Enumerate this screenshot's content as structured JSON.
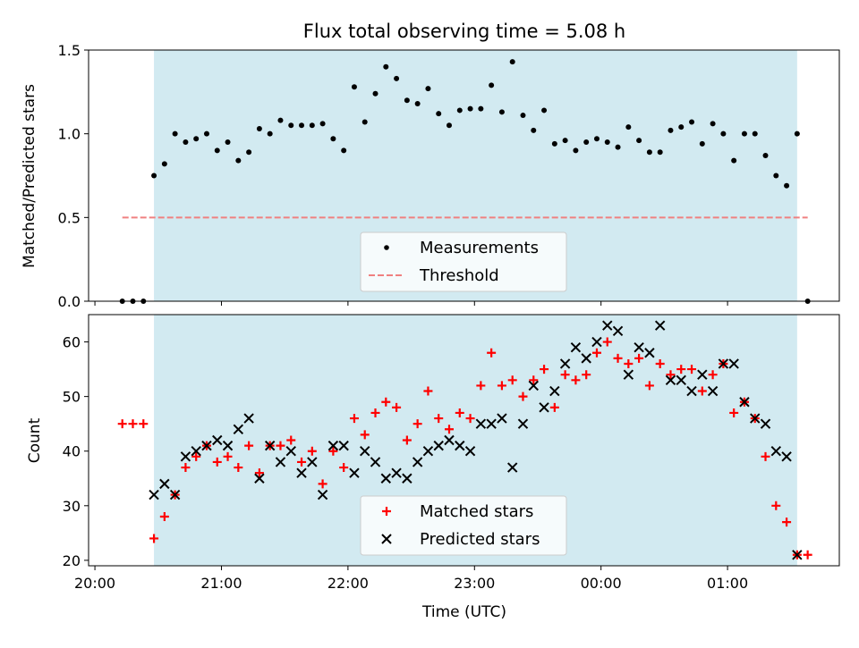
{
  "chart_data": [
    {
      "type": "scatter",
      "title": "Flux total observing time = 5.08 h",
      "xlabel": "",
      "ylabel": "Matched/Predicted stars",
      "ylim": [
        0,
        1.5
      ],
      "yticks": [
        "0.0",
        "0.5",
        "1.0",
        "1.5"
      ],
      "shaded_span": {
        "start": "20:28",
        "end": "01:33",
        "color": "#add8e6"
      },
      "threshold": {
        "name": "Threshold",
        "value": 0.5,
        "x_start": "20:13",
        "x_end": "01:38",
        "color": "#f08080",
        "style": "dashed"
      },
      "series": [
        {
          "name": "Measurements",
          "color": "#000000",
          "marker": "dot",
          "x": [
            "20:13",
            "20:18",
            "20:23",
            "20:28",
            "20:33",
            "20:38",
            "20:43",
            "20:48",
            "20:53",
            "20:58",
            "21:03",
            "21:08",
            "21:13",
            "21:18",
            "21:23",
            "21:28",
            "21:33",
            "21:38",
            "21:43",
            "21:48",
            "21:53",
            "21:58",
            "22:03",
            "22:08",
            "22:13",
            "22:18",
            "22:23",
            "22:28",
            "22:33",
            "22:38",
            "22:43",
            "22:48",
            "22:53",
            "22:58",
            "23:03",
            "23:08",
            "23:13",
            "23:18",
            "23:23",
            "23:28",
            "23:33",
            "23:38",
            "23:43",
            "23:48",
            "23:53",
            "23:58",
            "00:03",
            "00:08",
            "00:13",
            "00:18",
            "00:23",
            "00:28",
            "00:33",
            "00:38",
            "00:43",
            "00:48",
            "00:53",
            "00:58",
            "01:03",
            "01:08",
            "01:13",
            "01:18",
            "01:23",
            "01:28",
            "01:33",
            "01:38"
          ],
          "y": [
            0,
            0,
            0,
            0.75,
            0.82,
            1.0,
            0.95,
            0.97,
            1.0,
            0.9,
            0.95,
            0.84,
            0.89,
            1.03,
            1.0,
            1.08,
            1.05,
            1.05,
            1.05,
            1.06,
            0.97,
            0.9,
            1.28,
            1.07,
            1.24,
            1.4,
            1.33,
            1.2,
            1.18,
            1.27,
            1.12,
            1.05,
            1.14,
            1.15,
            1.15,
            1.29,
            1.13,
            1.43,
            1.11,
            1.02,
            1.14,
            0.94,
            0.96,
            0.9,
            0.95,
            0.97,
            0.95,
            0.92,
            1.04,
            0.96,
            0.89,
            0.89,
            1.02,
            1.04,
            1.07,
            0.94,
            1.06,
            1.0,
            0.84,
            1.0,
            1.0,
            0.87,
            0.75,
            0.69,
            1.0,
            0
          ]
        }
      ],
      "legend": {
        "location": "lower center",
        "entries": [
          "Measurements",
          "Threshold"
        ]
      }
    },
    {
      "type": "scatter",
      "title": "",
      "xlabel": "Time (UTC)",
      "ylabel": "Count",
      "ylim": [
        19,
        65
      ],
      "yticks": [
        "20",
        "30",
        "40",
        "50",
        "60"
      ],
      "xticks": [
        "20:00",
        "21:00",
        "22:00",
        "23:00",
        "00:00",
        "01:00"
      ],
      "xlim": [
        "19:57",
        "01:53"
      ],
      "shaded_span": {
        "start": "20:28",
        "end": "01:33",
        "color": "#add8e6"
      },
      "series": [
        {
          "name": "Matched stars",
          "color": "#ff0000",
          "marker": "plus",
          "x": [
            "20:13",
            "20:18",
            "20:23",
            "20:28",
            "20:33",
            "20:38",
            "20:43",
            "20:48",
            "20:53",
            "20:58",
            "21:03",
            "21:08",
            "21:13",
            "21:18",
            "21:23",
            "21:28",
            "21:33",
            "21:38",
            "21:43",
            "21:48",
            "21:53",
            "21:58",
            "22:03",
            "22:08",
            "22:13",
            "22:18",
            "22:23",
            "22:28",
            "22:33",
            "22:38",
            "22:43",
            "22:48",
            "22:53",
            "22:58",
            "23:03",
            "23:08",
            "23:13",
            "23:18",
            "23:23",
            "23:28",
            "23:33",
            "23:38",
            "23:43",
            "23:48",
            "23:53",
            "23:58",
            "00:03",
            "00:08",
            "00:13",
            "00:18",
            "00:23",
            "00:28",
            "00:33",
            "00:38",
            "00:43",
            "00:48",
            "00:53",
            "00:58",
            "01:03",
            "01:08",
            "01:13",
            "01:18",
            "01:23",
            "01:28",
            "01:33",
            "01:38"
          ],
          "y": [
            45,
            45,
            45,
            24,
            28,
            32,
            37,
            39,
            41,
            38,
            39,
            37,
            41,
            36,
            41,
            41,
            42,
            38,
            40,
            34,
            40,
            37,
            46,
            43,
            47,
            49,
            48,
            42,
            45,
            51,
            46,
            44,
            47,
            46,
            52,
            58,
            52,
            53,
            50,
            53,
            55,
            48,
            54,
            53,
            54,
            58,
            60,
            57,
            56,
            57,
            52,
            56,
            54,
            55,
            55,
            51,
            54,
            56,
            47,
            49,
            46,
            39,
            30,
            27,
            21,
            21
          ]
        },
        {
          "name": "Predicted stars",
          "color": "#000000",
          "marker": "x",
          "x": [
            "20:28",
            "20:33",
            "20:38",
            "20:43",
            "20:48",
            "20:53",
            "20:58",
            "21:03",
            "21:08",
            "21:13",
            "21:18",
            "21:23",
            "21:28",
            "21:33",
            "21:38",
            "21:43",
            "21:48",
            "21:53",
            "21:58",
            "22:03",
            "22:08",
            "22:13",
            "22:18",
            "22:23",
            "22:28",
            "22:33",
            "22:38",
            "22:43",
            "22:48",
            "22:53",
            "22:58",
            "23:03",
            "23:08",
            "23:13",
            "23:18",
            "23:23",
            "23:28",
            "23:33",
            "23:38",
            "23:43",
            "23:48",
            "23:53",
            "23:58",
            "00:03",
            "00:08",
            "00:13",
            "00:18",
            "00:23",
            "00:28",
            "00:33",
            "00:38",
            "00:43",
            "00:48",
            "00:53",
            "00:58",
            "01:03",
            "01:08",
            "01:13",
            "01:18",
            "01:23",
            "01:28",
            "01:33"
          ],
          "y": [
            32,
            34,
            32,
            39,
            40,
            41,
            42,
            41,
            44,
            46,
            35,
            41,
            38,
            40,
            36,
            38,
            32,
            41,
            41,
            36,
            40,
            38,
            35,
            36,
            35,
            38,
            40,
            41,
            42,
            41,
            40,
            45,
            45,
            46,
            37,
            45,
            52,
            48,
            51,
            56,
            59,
            57,
            60,
            63,
            62,
            54,
            59,
            58,
            63,
            53,
            53,
            51,
            54,
            51,
            56,
            56,
            49,
            46,
            45,
            40,
            39,
            21
          ]
        }
      ],
      "legend": {
        "location": "lower center",
        "entries": [
          "Matched stars",
          "Predicted stars"
        ]
      }
    }
  ]
}
